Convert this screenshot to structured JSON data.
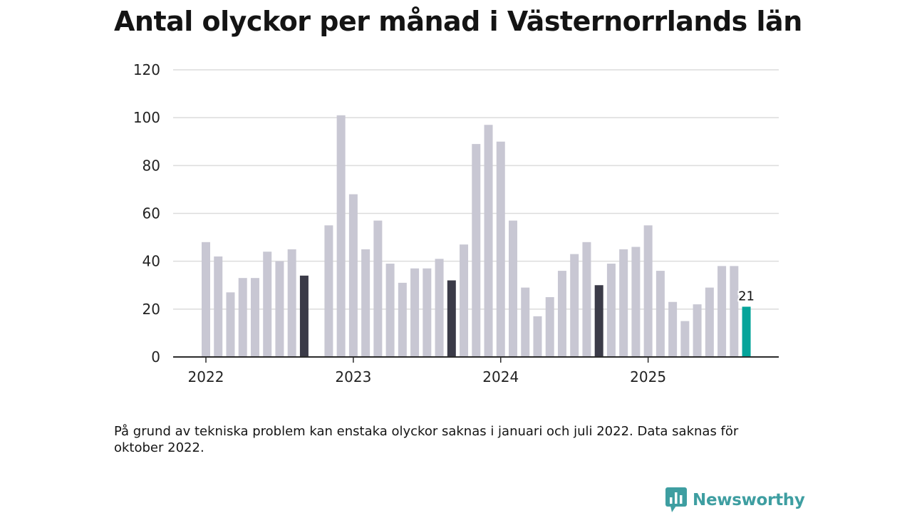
{
  "title": "Antal olyckor per månad i Västernorrlands län",
  "note": "På grund av tekniska problem kan enstaka olyckor saknas i januari och juli 2022. Data saknas för oktober 2022.",
  "brand": {
    "name": "Newsworthy",
    "icon": "newsworthy-logo-icon"
  },
  "colors": {
    "default_bar": "#c8c7d3",
    "highlight_bar": "#3b3b48",
    "latest_bar": "#05a49a",
    "grid": "#dcdcdc",
    "axis": "#2b2b2b",
    "brand": "#3e9ea1"
  },
  "chart_data": {
    "type": "bar",
    "title": "Antal olyckor per månad i Västernorrlands län",
    "xlabel": "",
    "ylabel": "",
    "ylim": [
      0,
      120
    ],
    "yticks": [
      0,
      20,
      40,
      60,
      80,
      100,
      120
    ],
    "grid": true,
    "start": "2022-01",
    "months": 45,
    "values": [
      48,
      42,
      27,
      33,
      33,
      44,
      40,
      45,
      34,
      null,
      55,
      101,
      68,
      45,
      57,
      39,
      31,
      37,
      37,
      41,
      32,
      47,
      89,
      97,
      90,
      57,
      29,
      17,
      25,
      36,
      43,
      48,
      30,
      39,
      45,
      46,
      55,
      36,
      23,
      15,
      22,
      29,
      38,
      38,
      21
    ],
    "xtick_labels": [
      {
        "label": "2022",
        "index": 0
      },
      {
        "label": "2023",
        "index": 12
      },
      {
        "label": "2024",
        "index": 24
      },
      {
        "label": "2025",
        "index": 36
      }
    ],
    "highlighted_indices": [
      8,
      20,
      32
    ],
    "latest_index": 44,
    "annotations": [
      {
        "index": 44,
        "text": "21"
      }
    ]
  }
}
